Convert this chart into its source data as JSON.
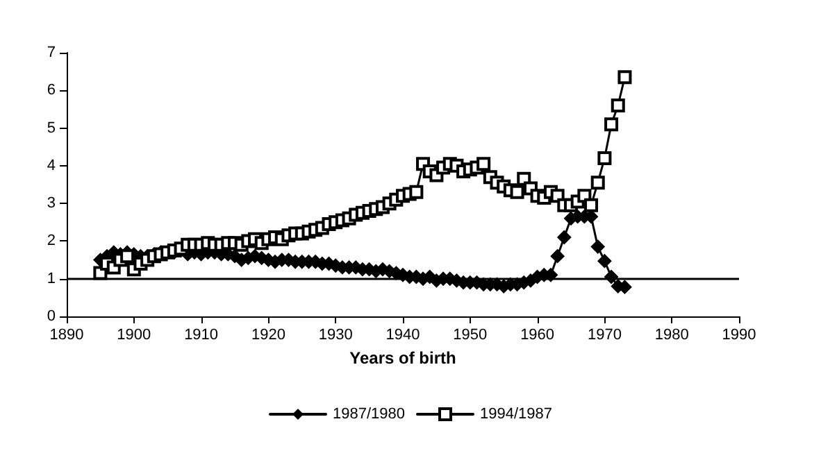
{
  "chart_data": {
    "type": "line",
    "xlabel": "Years of birth",
    "x": [
      1895,
      1896,
      1897,
      1898,
      1899,
      1900,
      1901,
      1902,
      1903,
      1904,
      1905,
      1906,
      1907,
      1908,
      1909,
      1910,
      1911,
      1912,
      1913,
      1914,
      1915,
      1916,
      1917,
      1918,
      1919,
      1920,
      1921,
      1922,
      1923,
      1924,
      1925,
      1926,
      1927,
      1928,
      1929,
      1930,
      1931,
      1932,
      1933,
      1934,
      1935,
      1936,
      1937,
      1938,
      1939,
      1940,
      1941,
      1942,
      1943,
      1944,
      1945,
      1946,
      1947,
      1948,
      1949,
      1950,
      1951,
      1952,
      1953,
      1954,
      1955,
      1956,
      1957,
      1958,
      1959,
      1960,
      1961,
      1962,
      1963,
      1964,
      1965,
      1966,
      1967,
      1968,
      1969,
      1970,
      1971,
      1972,
      1973
    ],
    "series": [
      {
        "name": "1987/1980",
        "color": "#000000",
        "marker": "diamond",
        "values": [
          1.5,
          1.6,
          1.7,
          1.65,
          1.7,
          1.65,
          1.6,
          1.6,
          1.65,
          1.7,
          1.7,
          1.7,
          1.75,
          1.65,
          1.7,
          1.65,
          1.7,
          1.7,
          1.65,
          1.65,
          1.6,
          1.5,
          1.55,
          1.6,
          1.55,
          1.5,
          1.45,
          1.5,
          1.5,
          1.45,
          1.45,
          1.45,
          1.45,
          1.4,
          1.4,
          1.35,
          1.3,
          1.3,
          1.3,
          1.25,
          1.25,
          1.2,
          1.25,
          1.2,
          1.15,
          1.1,
          1.05,
          1.05,
          1.0,
          1.05,
          0.95,
          1.0,
          1.0,
          0.95,
          0.9,
          0.9,
          0.9,
          0.85,
          0.85,
          0.85,
          0.8,
          0.85,
          0.85,
          0.9,
          0.95,
          1.05,
          1.1,
          1.1,
          1.6,
          2.1,
          2.6,
          2.65,
          2.65,
          2.65,
          1.85,
          1.47,
          1.05,
          0.8,
          0.78
        ]
      },
      {
        "name": "1994/1987",
        "color": "#000000",
        "marker": "square",
        "values": [
          1.15,
          1.4,
          1.3,
          1.5,
          1.6,
          1.25,
          1.4,
          1.5,
          1.6,
          1.65,
          1.7,
          1.75,
          1.8,
          1.9,
          1.9,
          1.9,
          1.95,
          1.9,
          1.9,
          1.95,
          1.95,
          1.9,
          2.0,
          2.05,
          1.95,
          2.05,
          2.1,
          2.05,
          2.15,
          2.2,
          2.2,
          2.25,
          2.3,
          2.35,
          2.45,
          2.5,
          2.55,
          2.6,
          2.7,
          2.75,
          2.8,
          2.85,
          2.9,
          3.0,
          3.1,
          3.2,
          3.25,
          3.3,
          4.05,
          3.85,
          3.75,
          3.95,
          4.05,
          4.0,
          3.85,
          3.9,
          3.95,
          4.05,
          3.7,
          3.55,
          3.45,
          3.35,
          3.3,
          3.65,
          3.4,
          3.2,
          3.15,
          3.3,
          3.2,
          2.95,
          2.95,
          3.05,
          3.2,
          2.95,
          3.55,
          4.2,
          5.1,
          5.6,
          6.35
        ]
      }
    ],
    "xlim": [
      1890,
      1990
    ],
    "xticks": [
      1890,
      1900,
      1910,
      1920,
      1930,
      1940,
      1950,
      1960,
      1970,
      1980,
      1990
    ],
    "ylim": [
      0,
      7
    ],
    "yticks": [
      0,
      1,
      2,
      3,
      4,
      5,
      6,
      7
    ],
    "ref_lines": [
      {
        "axis": "y",
        "value": 1,
        "color": "#000000"
      }
    ],
    "grid": false,
    "legend": "bottom",
    "line_style": "solid"
  }
}
